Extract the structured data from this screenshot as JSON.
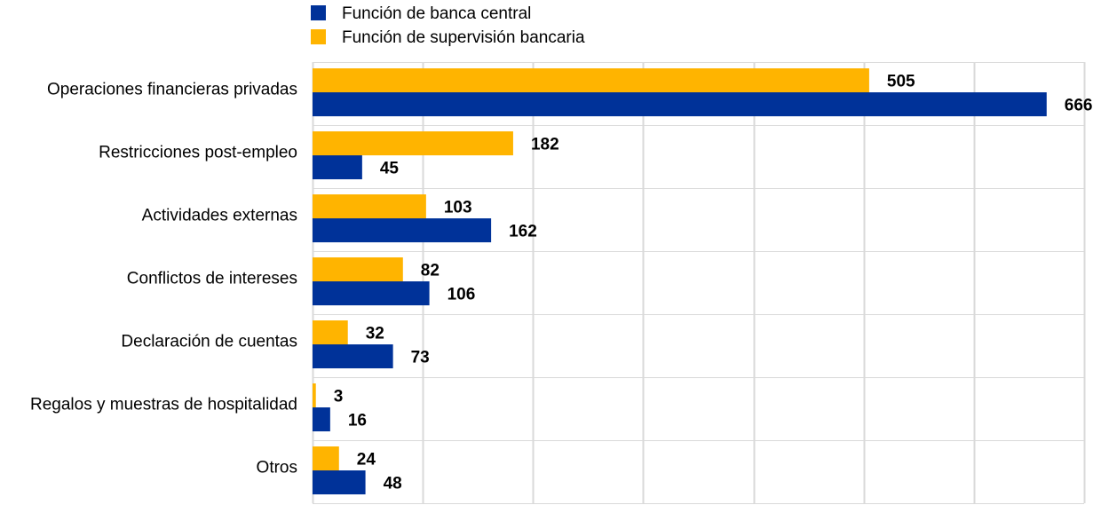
{
  "chart_data": {
    "type": "bar",
    "orientation": "horizontal",
    "categories": [
      "Operaciones financieras privadas",
      "Restricciones post-empleo",
      "Actividades externas",
      "Conflictos de intereses",
      "Declaración de cuentas",
      "Regalos y muestras de hospitalidad",
      "Otros"
    ],
    "series": [
      {
        "name": "Función de supervisión bancaria",
        "color": "#FFB400",
        "values": [
          505,
          182,
          103,
          82,
          32,
          3,
          24
        ]
      },
      {
        "name": "Función de banca central",
        "color": "#003299",
        "values": [
          666,
          45,
          162,
          106,
          73,
          16,
          48
        ]
      }
    ],
    "legend": {
      "placement": "top",
      "order": [
        "Función de banca central",
        "Función de supervisión bancaria"
      ]
    },
    "xlim": [
      0,
      700
    ],
    "x_gridline_step": 100,
    "grid": true,
    "data_labels": true,
    "title": "",
    "xlabel": "",
    "ylabel": ""
  }
}
